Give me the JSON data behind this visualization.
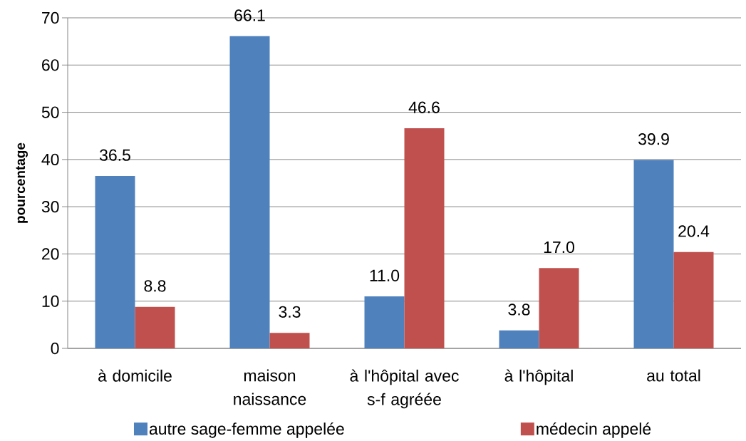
{
  "chart_data": {
    "type": "bar",
    "ylabel": "pourcentage",
    "categories": [
      "à domicile",
      "maison naissance",
      "à l'hôpital avec s-f agréée",
      "à l'hôpital",
      "au total"
    ],
    "series": [
      {
        "name": "autre sage-femme appelée",
        "color": "#4f81bd",
        "values": [
          36.5,
          66.1,
          11.0,
          3.8,
          39.9
        ],
        "value_labels": [
          "36.5",
          "66.1",
          "11.0",
          "3.8",
          "39.9"
        ]
      },
      {
        "name": "médecin appelé",
        "color": "#c0504d",
        "values": [
          8.8,
          3.3,
          46.6,
          17.0,
          20.4
        ],
        "value_labels": [
          "8.8",
          "3.3",
          "46.6",
          "17.0",
          "20.4"
        ]
      }
    ],
    "ylim": [
      0,
      70
    ],
    "yticks": [
      0,
      10,
      20,
      30,
      40,
      50,
      60,
      70
    ],
    "grid": "y",
    "legend": "bottom"
  }
}
